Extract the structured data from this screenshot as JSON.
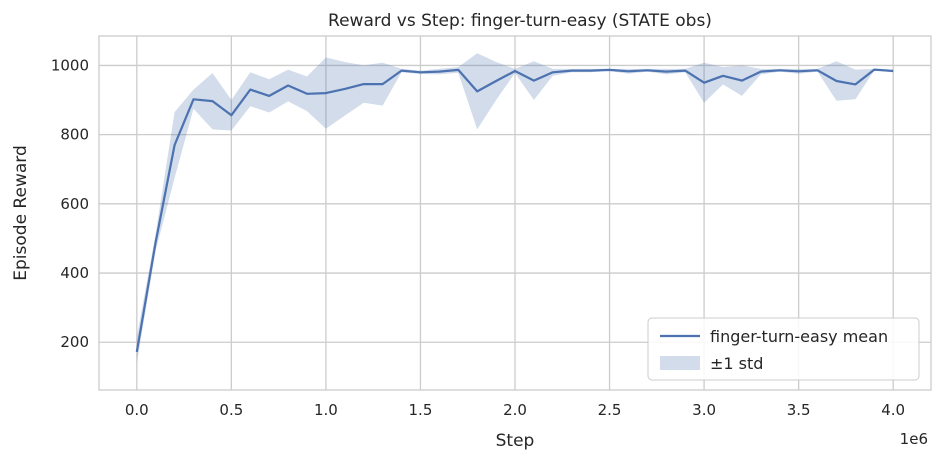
{
  "chart_data": {
    "type": "line",
    "title": "Reward vs Step: finger-turn-easy (STATE obs)",
    "xlabel": "Step",
    "ylabel": "Episode Reward",
    "x_offset_label": "1e6",
    "xlim": [
      -0.2,
      4.2
    ],
    "ylim": [
      62,
      1085
    ],
    "x_ticks": [
      0.0,
      0.5,
      1.0,
      1.5,
      2.0,
      2.5,
      3.0,
      3.5,
      4.0
    ],
    "x_tick_labels": [
      "0.0",
      "0.5",
      "1.0",
      "1.5",
      "2.0",
      "2.5",
      "3.0",
      "3.5",
      "4.0"
    ],
    "y_ticks": [
      200,
      400,
      600,
      800,
      1000
    ],
    "y_tick_labels": [
      "200",
      "400",
      "600",
      "800",
      "1000"
    ],
    "grid": true,
    "legend_position": "bottom-right",
    "legend": [
      "finger-turn-easy mean",
      "±1 std"
    ],
    "x": [
      0.0,
      0.1,
      0.2,
      0.3,
      0.4,
      0.5,
      0.6,
      0.7,
      0.8,
      0.9,
      1.0,
      1.1,
      1.2,
      1.3,
      1.4,
      1.5,
      1.6,
      1.7,
      1.8,
      1.9,
      2.0,
      2.1,
      2.2,
      2.3,
      2.4,
      2.5,
      2.6,
      2.7,
      2.8,
      2.9,
      3.0,
      3.1,
      3.2,
      3.3,
      3.4,
      3.5,
      3.6,
      3.7,
      3.8,
      3.9,
      4.0
    ],
    "series": [
      {
        "name": "finger-turn-easy mean",
        "color": "#4c72b0",
        "values": [
          172,
          490,
          770,
          902,
          897,
          856,
          930,
          912,
          942,
          918,
          920,
          932,
          946,
          946,
          985,
          980,
          982,
          987,
          925,
          955,
          984,
          956,
          980,
          985,
          985,
          987,
          983,
          986,
          982,
          985,
          950,
          970,
          956,
          982,
          986,
          983,
          986,
          955,
          945,
          988,
          984
        ],
        "upper": [
          215,
          515,
          865,
          930,
          978,
          900,
          980,
          960,
          988,
          968,
          1023,
          1010,
          1000,
          1008,
          990,
          985,
          990,
          995,
          1035,
          1010,
          990,
          1012,
          990,
          990,
          990,
          990,
          990,
          990,
          990,
          990,
          1008,
          995,
          1000,
          990,
          990,
          990,
          990,
          1012,
          988,
          990,
          988
        ],
        "lower": [
          140,
          465,
          675,
          875,
          815,
          812,
          882,
          864,
          896,
          868,
          817,
          855,
          892,
          884,
          980,
          975,
          974,
          979,
          815,
          900,
          978,
          900,
          970,
          980,
          980,
          984,
          976,
          982,
          974,
          980,
          892,
          945,
          912,
          974,
          982,
          976,
          982,
          898,
          902,
          986,
          980
        ]
      }
    ],
    "band": {
      "name": "±1 std",
      "color": "#4c72b0",
      "opacity": 0.25
    }
  }
}
